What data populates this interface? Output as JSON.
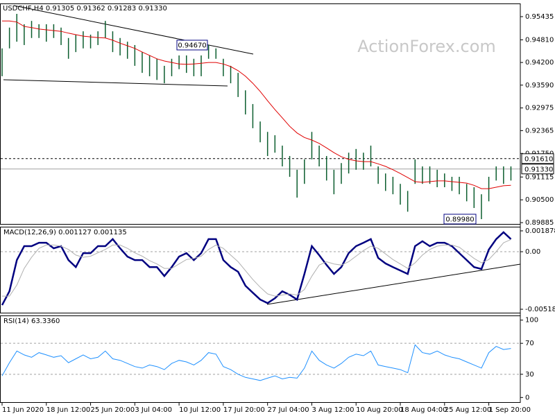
{
  "chart_data": [
    {
      "type": "ohlc",
      "title": "USDCHF,H4  0.91305 0.91362 0.91283 0.91330",
      "watermark": "ActionForex.com",
      "color": "#0b5d2e",
      "high": [
        0.9458,
        0.9514,
        0.9551,
        0.9523,
        0.9532,
        0.9523,
        0.9523,
        0.9523,
        0.9514,
        0.9486,
        0.9495,
        0.9504,
        0.9495,
        0.9504,
        0.9532,
        0.9504,
        0.9486,
        0.9476,
        0.9467,
        0.9448,
        0.9439,
        0.943,
        0.9411,
        0.943,
        0.9439,
        0.9439,
        0.943,
        0.9439,
        0.9467,
        0.9458,
        0.943,
        0.9411,
        0.9392,
        0.9345,
        0.9308,
        0.9261,
        0.9233,
        0.9224,
        0.9196,
        0.9168,
        0.9131,
        0.9159,
        0.9233,
        0.9196,
        0.9168,
        0.9131,
        0.9149,
        0.9177,
        0.9187,
        0.9177,
        0.9196,
        0.914,
        0.9121,
        0.9112,
        0.9093,
        0.9074,
        0.9159,
        0.914,
        0.914,
        0.9131,
        0.9121,
        0.9112,
        0.9112,
        0.9093,
        0.9084,
        0.9065,
        0.9112,
        0.914,
        0.914,
        0.914
      ],
      "low": [
        0.9383,
        0.9458,
        0.9476,
        0.9467,
        0.9486,
        0.9486,
        0.9476,
        0.9486,
        0.9467,
        0.943,
        0.9448,
        0.9458,
        0.9458,
        0.9467,
        0.9486,
        0.9448,
        0.9439,
        0.943,
        0.9411,
        0.9392,
        0.9383,
        0.9373,
        0.9364,
        0.9383,
        0.9402,
        0.9392,
        0.9383,
        0.9383,
        0.943,
        0.943,
        0.9383,
        0.9364,
        0.9327,
        0.928,
        0.9243,
        0.9205,
        0.9168,
        0.9177,
        0.914,
        0.9112,
        0.9056,
        0.9093,
        0.9159,
        0.914,
        0.9102,
        0.9065,
        0.9093,
        0.9121,
        0.9131,
        0.9131,
        0.914,
        0.9093,
        0.9074,
        0.9065,
        0.9037,
        0.9018,
        0.9093,
        0.9093,
        0.9093,
        0.9084,
        0.9084,
        0.9074,
        0.9065,
        0.9046,
        0.9028,
        0.8998,
        0.9046,
        0.9102,
        0.9093,
        0.9102
      ],
      "ma": {
        "color": "#e00000",
        "values": [
          0.9532,
          0.9532,
          0.9529,
          0.9517,
          0.9514,
          0.951,
          0.9508,
          0.9506,
          0.9504,
          0.9499,
          0.9495,
          0.9491,
          0.9489,
          0.9487,
          0.9486,
          0.948,
          0.9472,
          0.9465,
          0.9458,
          0.9448,
          0.9439,
          0.943,
          0.9424,
          0.942,
          0.9416,
          0.9415,
          0.9416,
          0.9418,
          0.942,
          0.942,
          0.9416,
          0.9409,
          0.9398,
          0.9383,
          0.9364,
          0.9342,
          0.9317,
          0.9293,
          0.9271,
          0.9248,
          0.923,
          0.9218,
          0.9211,
          0.9202,
          0.919,
          0.9177,
          0.9166,
          0.9159,
          0.9155,
          0.9153,
          0.9153,
          0.9147,
          0.914,
          0.9131,
          0.9121,
          0.911,
          0.9099,
          0.9097,
          0.9099,
          0.9101,
          0.9101,
          0.9099,
          0.9097,
          0.9095,
          0.9089,
          0.908,
          0.908,
          0.9084,
          0.9088,
          0.9089
        ]
      },
      "annotations": [
        "0.94670",
        "0.89980"
      ],
      "levels": [
        {
          "value": 0.9161,
          "label": "0.91610",
          "dashed": true
        },
        {
          "value": 0.9133,
          "label": "0.91330",
          "dashed": false
        }
      ],
      "ylim": [
        0.8985,
        0.9579
      ],
      "yticks": [
        0.95435,
        {
          "value": 0.9481,
          "label": "0.94810"
        },
        {
          "value": 0.942,
          "label": "0.94200"
        },
        {
          "value": 0.9359,
          "label": "0.93590"
        },
        0.92975,
        0.92365,
        {
          "value": 0.9175,
          "label": "0.91750"
        },
        0.91115,
        {
          "value": 0.905,
          "label": "0.90500"
        },
        0.89885
      ]
    },
    {
      "type": "line",
      "title": "MACD(12,26,9) 0.001127 0.001135",
      "series": [
        {
          "color": "#000080",
          "values": [
            -0.00481,
            -0.00356,
            -0.00075,
            0.0005,
            0.0005,
            0.00081,
            0.00081,
            0.00031,
            0.0005,
            -0.00075,
            -0.00138,
            -0.00013,
            -0.00013,
            0.0005,
            0.0005,
            0.00113,
            0.00031,
            -0.00044,
            -0.00075,
            -0.00075,
            -0.00138,
            -0.00138,
            -0.00219,
            -0.00138,
            -0.00044,
            -0.00013,
            -0.00075,
            -0.00013,
            0.00113,
            0.00113,
            -0.00075,
            -0.00138,
            -0.00181,
            -0.00306,
            -0.00369,
            -0.00431,
            -0.00463,
            -0.00419,
            -0.00356,
            -0.00388,
            -0.00431,
            -0.002,
            0.0005,
            -0.00031,
            -0.00119,
            -0.002,
            -0.00138,
            -0.00013,
            0.0005,
            0.00081,
            0.00113,
            -0.00056,
            -0.00106,
            -0.00138,
            -0.00169,
            -0.002,
            0.0005,
            0.00094,
            0.0005,
            0.00081,
            0.00081,
            0.0005,
            -0.00013,
            -0.00075,
            -0.00138,
            -0.00156,
            0.00019,
            0.00113,
            0.00175,
            0.00113
          ]
        },
        {
          "color": "#b0b0b0",
          "values": [
            -0.004,
            -0.004,
            -0.003,
            -0.0015,
            -0.0005,
            0.0003,
            0.0006,
            0.0006,
            0.0005,
            0.0002,
            -0.0003,
            -0.0005,
            -0.0004,
            -0.0001,
            0.0002,
            0.0006,
            0.0006,
            0.0003,
            -0.0001,
            -0.0004,
            -0.0008,
            -0.0011,
            -0.0015,
            -0.0015,
            -0.0011,
            -0.0007,
            -0.0006,
            -0.0004,
            0.0002,
            0.0006,
            0.0003,
            -0.0003,
            -0.0009,
            -0.0017,
            -0.0025,
            -0.0032,
            -0.0038,
            -0.004,
            -0.0039,
            -0.0038,
            -0.0039,
            -0.0034,
            -0.0022,
            -0.0012,
            -0.0009,
            -0.0011,
            -0.0012,
            -0.0009,
            -0.0004,
            0.0001,
            0.0005,
            0.0003,
            -0.0002,
            -0.0007,
            -0.0011,
            -0.0015,
            -0.001,
            -0.0003,
            0.0002,
            0.0005,
            0.0006,
            0.0006,
            0.0004,
            -0.0001,
            -0.0006,
            -0.001,
            -0.0007,
            0,
            0.0008,
            0.0011
          ]
        }
      ],
      "levels": [
        0
      ],
      "ylim": [
        -0.00549,
        0.00225
      ],
      "yticks": [
        0.001878,
        {
          "value": 0,
          "label": "0.00"
        },
        -0.00518
      ]
    },
    {
      "type": "line",
      "title": "RSI(14) 63.3360",
      "color": "#1e90ff",
      "values": [
        28,
        45,
        60,
        55,
        52,
        58,
        55,
        52,
        54,
        45,
        50,
        55,
        50,
        52,
        60,
        50,
        48,
        44,
        40,
        38,
        42,
        40,
        36,
        44,
        48,
        46,
        42,
        48,
        58,
        56,
        40,
        36,
        30,
        26,
        24,
        22,
        25,
        28,
        24,
        26,
        25,
        38,
        60,
        48,
        42,
        38,
        44,
        52,
        56,
        54,
        60,
        42,
        40,
        38,
        36,
        32,
        68,
        58,
        56,
        60,
        55,
        52,
        50,
        46,
        42,
        38,
        58,
        66,
        62,
        63.336
      ],
      "levels": [
        70,
        30
      ],
      "ylim": [
        -6,
        106
      ],
      "yticks": [
        100,
        70,
        30,
        0
      ],
      "categories": [
        "11 Jun 2020",
        null,
        null,
        null,
        null,
        null,
        "18 Jun 12:00",
        null,
        null,
        null,
        null,
        null,
        "25 Jun 20:00",
        null,
        null,
        null,
        null,
        null,
        "3 Jul 04:00",
        null,
        null,
        null,
        null,
        null,
        "10 Jul 12:00",
        null,
        null,
        null,
        null,
        null,
        "17 Jul 20:00",
        null,
        null,
        null,
        null,
        null,
        "27 Jul 04:00",
        null,
        null,
        null,
        null,
        null,
        "3 Aug 12:00",
        null,
        null,
        null,
        null,
        null,
        "10 Aug 20:00",
        null,
        null,
        null,
        null,
        null,
        "18 Aug 04:00",
        null,
        null,
        null,
        null,
        null,
        "25 Aug 12:00",
        null,
        null,
        null,
        null,
        null,
        "1 Sep 20:00",
        null,
        null,
        null
      ]
    }
  ]
}
